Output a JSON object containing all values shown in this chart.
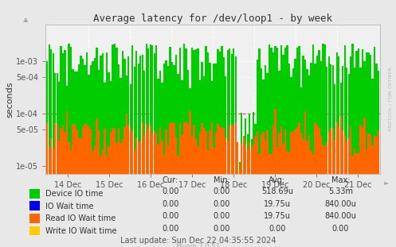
{
  "title": "Average latency for /dev/loop1 - by week",
  "ylabel": "seconds",
  "background_color": "#e8e8e8",
  "plot_bg_color": "#f0f0f0",
  "x_tick_labels": [
    "14 Dec",
    "15 Dec",
    "16 Dec",
    "17 Dec",
    "18 Dec",
    "19 Dec",
    "20 Dec",
    "21 Dec"
  ],
  "yticks": [
    1e-05,
    5e-05,
    0.0001,
    0.0005,
    0.001
  ],
  "ytick_labels": [
    "1e-05",
    "5e-05",
    "1e-04",
    "5e-04",
    "1e-03"
  ],
  "ylim_low": 7e-06,
  "ylim_high": 0.005,
  "n_bars": 168,
  "legend_items": [
    {
      "label": "Device IO time",
      "color": "#00cc00"
    },
    {
      "label": "IO Wait time",
      "color": "#0000ee"
    },
    {
      "label": "Read IO Wait time",
      "color": "#ff6600"
    },
    {
      "label": "Write IO Wait time",
      "color": "#ffcc00"
    }
  ],
  "cur_values": [
    "0.00",
    "0.00",
    "0.00",
    "0.00"
  ],
  "min_values": [
    "0.00",
    "0.00",
    "0.00",
    "0.00"
  ],
  "avg_values": [
    "518.69u",
    "19.75u",
    "19.75u",
    "0.00"
  ],
  "max_values": [
    "5.33m",
    "840.00u",
    "840.00u",
    "0.00"
  ],
  "last_update": "Last update: Sun Dec 22 04:35:55 2024",
  "munin_label": "Munin 2.0.57",
  "rrdtool_label": "RRDTOOL / TOBI OETIKER"
}
